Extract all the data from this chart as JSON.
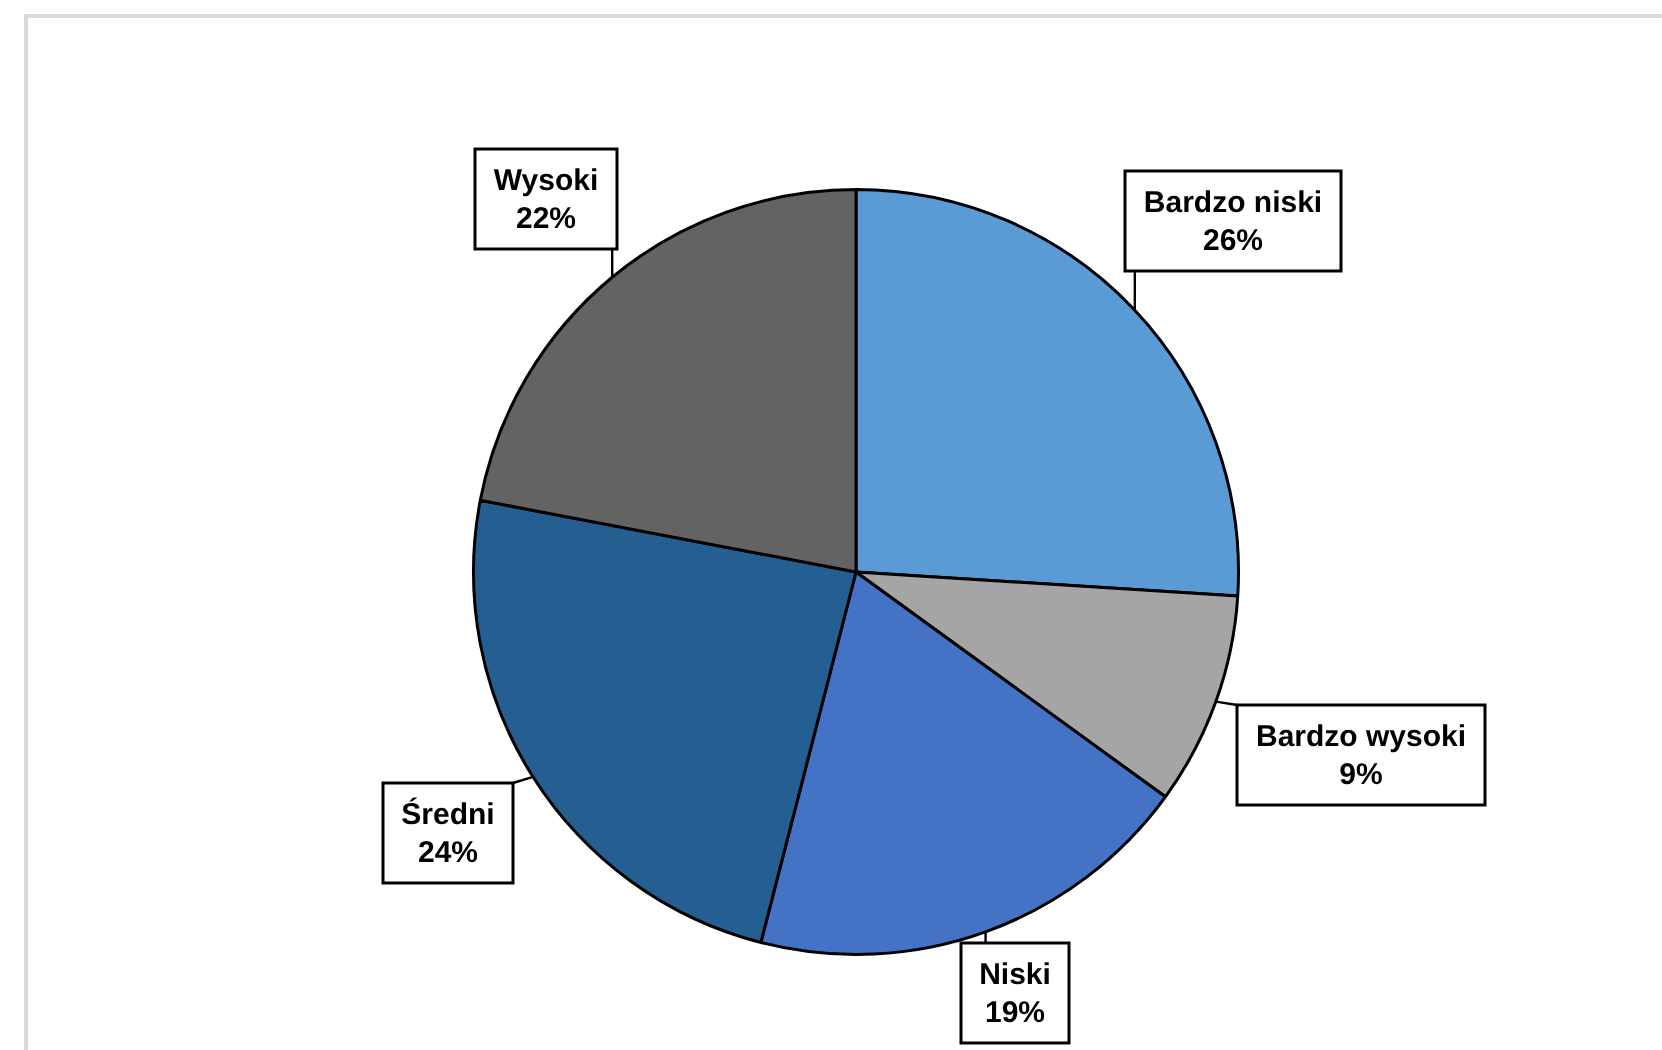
{
  "chart_data": {
    "type": "pie",
    "categories": [
      "Bardzo niski",
      "Bardzo wysoki",
      "Niski",
      "Średni",
      "Wysoki"
    ],
    "values": [
      26,
      9,
      19,
      24,
      22
    ],
    "colors": [
      "#5b9bd5",
      "#a5a5a5",
      "#4472c4",
      "#255e91",
      "#636363"
    ],
    "value_labels": [
      "26%",
      "9%",
      "19%",
      "24%",
      "22%"
    ]
  }
}
